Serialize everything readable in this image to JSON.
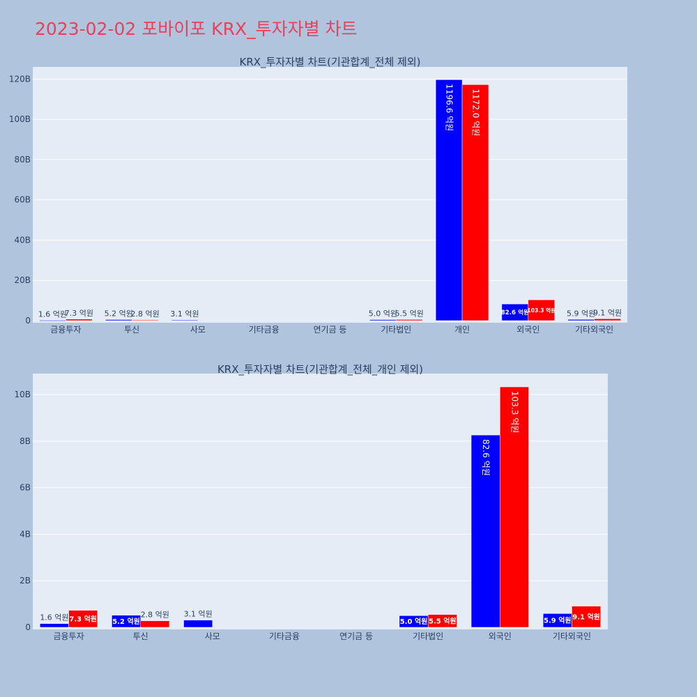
{
  "title": "2023-02-02 포바이포 KRX_투자자별 차트",
  "colors": {
    "buy": "#0000ff",
    "sell": "#ff0000",
    "title": "#e8415a",
    "plot_bg": "#e5ecf6",
    "page_bg": "#b0c4de"
  },
  "chart_data": [
    {
      "type": "bar",
      "title": "KRX_투자자별 차트(기관합계_전체 제외)",
      "categories": [
        "금융투자",
        "투신",
        "사모",
        "기타금융",
        "연기금 등",
        "기타법인",
        "개인",
        "외국인",
        "기타외국인"
      ],
      "series": [
        {
          "values": [
            0.16,
            0.52,
            0.31,
            0,
            0,
            0.5,
            119.66,
            8.26,
            0.59
          ],
          "labels": [
            "1.6 억원",
            "5.2 억원",
            "3.1 억원",
            "",
            "",
            "5.0 억원",
            "1196.6 억원",
            "82.6 억원",
            "5.9 억원"
          ]
        },
        {
          "values": [
            0.73,
            0.28,
            0,
            0,
            0,
            0.55,
            117.2,
            10.33,
            0.91
          ],
          "labels": [
            "7.3 억원",
            "2.8 억원",
            "",
            "",
            "",
            "5.5 억원",
            "1172.0 억원",
            "103.3 억원",
            "9.1 억원"
          ]
        }
      ],
      "yticks": [
        "0",
        "20B",
        "40B",
        "60B",
        "80B",
        "100B",
        "120B"
      ],
      "ytick_values": [
        0,
        20,
        40,
        60,
        80,
        100,
        120
      ],
      "ylim": [
        0,
        126
      ],
      "grid": true,
      "legend": "none"
    },
    {
      "type": "bar",
      "title": "KRX_투자자별 차트(기관합계_전체_개인 제외)",
      "categories": [
        "금융투자",
        "투신",
        "사모",
        "기타금융",
        "연기금 등",
        "기타법인",
        "외국인",
        "기타외국인"
      ],
      "series": [
        {
          "values": [
            0.16,
            0.52,
            0.31,
            0,
            0,
            0.5,
            8.26,
            0.59
          ],
          "labels": [
            "1.6 억원",
            "5.2 억원",
            "3.1 억원",
            "",
            "",
            "5.0 억원",
            "82.6 억원",
            "5.9 억원"
          ]
        },
        {
          "values": [
            0.73,
            0.28,
            0,
            0,
            0,
            0.55,
            10.33,
            0.91
          ],
          "labels": [
            "7.3 억원",
            "2.8 억원",
            "",
            "",
            "",
            "5.5 억원",
            "103.3 억원",
            "9.1 억원"
          ]
        }
      ],
      "yticks": [
        "0",
        "2B",
        "4B",
        "6B",
        "8B",
        "10B"
      ],
      "ytick_values": [
        0,
        2,
        4,
        6,
        8,
        10
      ],
      "ylim": [
        0,
        10.9
      ],
      "grid": true,
      "legend": "none"
    }
  ]
}
